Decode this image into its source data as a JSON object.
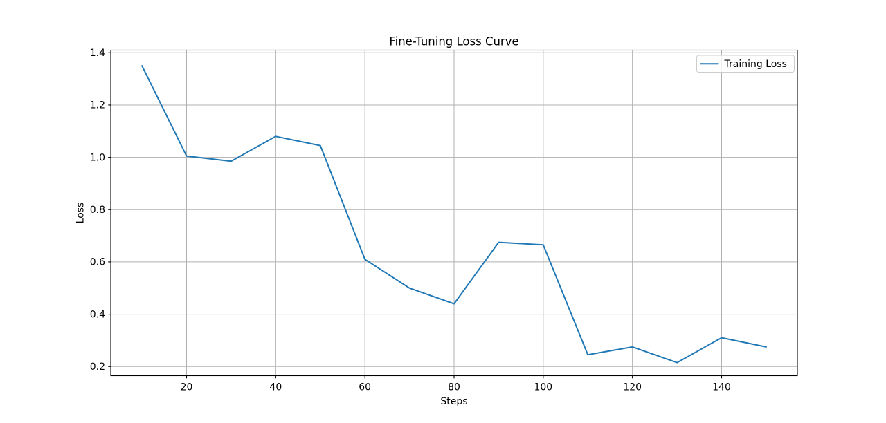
{
  "chart_data": {
    "type": "line",
    "title": "Fine-Tuning Loss Curve",
    "xlabel": "Steps",
    "ylabel": "Loss",
    "x": [
      10,
      20,
      30,
      40,
      50,
      60,
      70,
      80,
      90,
      100,
      110,
      120,
      130,
      140,
      150
    ],
    "series": [
      {
        "name": "Training Loss",
        "color": "#1f77b4",
        "values": [
          1.35,
          1.005,
          0.985,
          1.08,
          1.045,
          0.61,
          0.5,
          0.44,
          0.675,
          0.665,
          0.245,
          0.275,
          0.215,
          0.31,
          0.275
        ]
      }
    ],
    "xticks": [
      20,
      40,
      60,
      80,
      100,
      120,
      140
    ],
    "yticks": [
      0.2,
      0.4,
      0.6,
      0.8,
      1.0,
      1.2,
      1.4
    ],
    "xlim": [
      3,
      157
    ],
    "ylim": [
      0.165,
      1.41
    ],
    "grid": true,
    "grid_color": "#b0b0b0",
    "axis_color": "#000000",
    "background": "#ffffff",
    "legend": {
      "position": "upper right",
      "entries": [
        "Training Loss"
      ]
    }
  }
}
